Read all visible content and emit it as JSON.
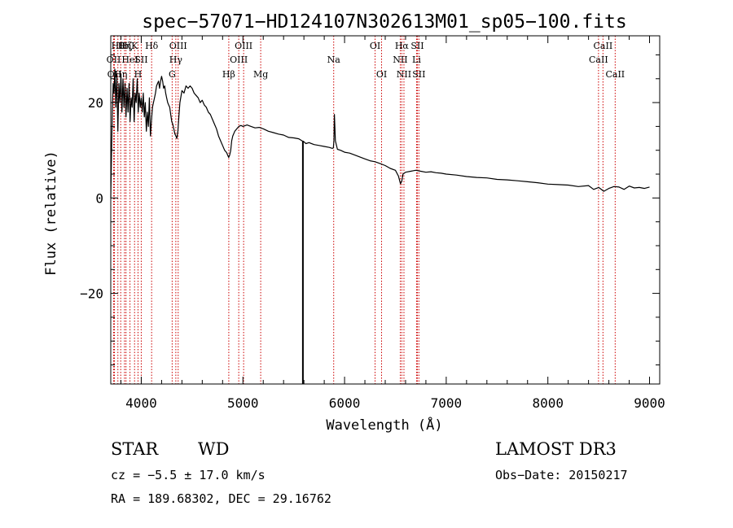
{
  "chart_data": {
    "type": "line",
    "title": "spec−57071−HD124107N302613M01_sp05−100.fits",
    "xlabel": "Wavelength (Å)",
    "ylabel": "Flux (relative)",
    "xlim": [
      3700,
      9100
    ],
    "ylim": [
      -39,
      34
    ],
    "x_ticks": [
      4000,
      5000,
      6000,
      7000,
      8000,
      9000
    ],
    "x_tick_labels": [
      "4000",
      "5000",
      "6000",
      "7000",
      "8000",
      "9000"
    ],
    "y_ticks": [
      -20,
      0,
      20
    ],
    "y_tick_labels": [
      "−20",
      "0",
      "20"
    ],
    "series": [
      {
        "name": "spectrum",
        "x": [
          3700,
          3708,
          3716,
          3724,
          3732,
          3740,
          3750,
          3760,
          3770,
          3780,
          3790,
          3800,
          3810,
          3820,
          3830,
          3840,
          3850,
          3860,
          3870,
          3880,
          3890,
          3900,
          3910,
          3920,
          3930,
          3940,
          3950,
          3960,
          3970,
          3980,
          3990,
          4000,
          4010,
          4020,
          4030,
          4040,
          4050,
          4060,
          4070,
          4080,
          4090,
          4100,
          4110,
          4120,
          4130,
          4140,
          4150,
          4160,
          4170,
          4180,
          4190,
          4200,
          4210,
          4220,
          4230,
          4240,
          4250,
          4260,
          4270,
          4280,
          4290,
          4300,
          4310,
          4320,
          4330,
          4340,
          4350,
          4360,
          4370,
          4380,
          4400,
          4420,
          4440,
          4460,
          4480,
          4500,
          4520,
          4540,
          4560,
          4580,
          4600,
          4620,
          4640,
          4660,
          4680,
          4700,
          4720,
          4740,
          4760,
          4780,
          4800,
          4820,
          4840,
          4850,
          4860,
          4870,
          4880,
          4890,
          4900,
          4920,
          4940,
          4960,
          4980,
          5000,
          5040,
          5080,
          5120,
          5160,
          5200,
          5250,
          5300,
          5350,
          5400,
          5450,
          5500,
          5550,
          5580,
          5600,
          5620,
          5650,
          5700,
          5750,
          5800,
          5850,
          5880,
          5890,
          5895,
          5900,
          5910,
          5930,
          5960,
          6000,
          6050,
          6100,
          6150,
          6200,
          6250,
          6300,
          6350,
          6400,
          6450,
          6500,
          6530,
          6550,
          6563,
          6575,
          6600,
          6650,
          6700,
          6750,
          6800,
          6850,
          6900,
          6950,
          7000,
          7100,
          7200,
          7300,
          7400,
          7500,
          7600,
          7700,
          7800,
          7900,
          8000,
          8100,
          8200,
          8300,
          8400,
          8450,
          8500,
          8550,
          8600,
          8650,
          8700,
          8750,
          8800,
          8850,
          8900,
          8950,
          9000
        ],
        "y": [
          0.0,
          10.0,
          19.0,
          24.0,
          22.0,
          27.0,
          19.0,
          26.0,
          14.0,
          24.0,
          20.0,
          26.0,
          18.0,
          25.0,
          19.0,
          24.0,
          17.0,
          23.0,
          18.0,
          24.0,
          16.0,
          21.0,
          19.0,
          25.0,
          16.0,
          22.0,
          20.0,
          25.0,
          18.0,
          22.0,
          19.0,
          21.0,
          18.0,
          22.0,
          17.0,
          20.0,
          14.0,
          18.0,
          15.0,
          21.0,
          13.0,
          16.0,
          19.0,
          20.0,
          21.0,
          22.0,
          23.5,
          24.0,
          24.5,
          23.0,
          24.5,
          25.5,
          24.5,
          23.0,
          23.5,
          22.0,
          21.0,
          20.0,
          19.5,
          19.0,
          17.5,
          16.0,
          15.5,
          14.5,
          13.5,
          13.0,
          12.5,
          14.0,
          17.0,
          20.0,
          22.5,
          22.0,
          23.5,
          23.0,
          23.5,
          23.0,
          22.0,
          21.5,
          21.0,
          20.0,
          20.5,
          19.5,
          19.0,
          18.0,
          17.5,
          16.5,
          15.5,
          14.5,
          13.0,
          12.0,
          11.0,
          10.0,
          9.5,
          9.0,
          8.5,
          9.0,
          10.0,
          12.0,
          13.0,
          14.0,
          14.5,
          15.0,
          15.2,
          15.0,
          15.3,
          15.0,
          14.7,
          14.8,
          14.5,
          14.0,
          13.7,
          13.4,
          13.2,
          12.7,
          12.6,
          12.4,
          12.0,
          11.8,
          11.4,
          11.6,
          11.2,
          11.0,
          10.8,
          10.6,
          10.4,
          10.5,
          12.0,
          17.5,
          12.0,
          10.2,
          10.0,
          9.6,
          9.4,
          9.0,
          8.6,
          8.2,
          7.8,
          7.6,
          7.2,
          6.8,
          6.2,
          5.8,
          4.6,
          3.0,
          3.5,
          5.0,
          5.4,
          5.6,
          5.8,
          5.6,
          5.4,
          5.5,
          5.3,
          5.2,
          5.0,
          4.8,
          4.5,
          4.3,
          4.2,
          3.9,
          3.8,
          3.6,
          3.4,
          3.2,
          2.9,
          2.8,
          2.7,
          2.4,
          2.6,
          1.8,
          2.2,
          1.4,
          2.0,
          2.4,
          2.3,
          1.8,
          2.5,
          2.1,
          2.2,
          2.0,
          2.3
        ]
      }
    ],
    "spike": {
      "x": 5590,
      "y_top": 12.0,
      "y_bottom": -39
    },
    "line_markers": [
      {
        "x": 3728,
        "label": "OII",
        "row": 2
      },
      {
        "x": 3736,
        "label": "OII",
        "row": 3
      },
      {
        "x": 3770,
        "label": "Hθ",
        "row": 1
      },
      {
        "x": 3798,
        "label": "Hη",
        "row": 3
      },
      {
        "x": 3835,
        "label": "Hη",
        "row": 1
      },
      {
        "x": 3850,
        "label": "Hζ",
        "row": 1
      },
      {
        "x": 3889,
        "label": "HeI",
        "row": 2
      },
      {
        "x": 3934,
        "label": "K",
        "row": 1
      },
      {
        "x": 3968,
        "label": "H",
        "row": 3
      },
      {
        "x": 4000,
        "label": "SII",
        "row": 2
      },
      {
        "x": 4102,
        "label": "Hδ",
        "row": 1
      },
      {
        "x": 4304,
        "label": "G",
        "row": 3
      },
      {
        "x": 4340,
        "label": "Hγ",
        "row": 2
      },
      {
        "x": 4363,
        "label": "OIII",
        "row": 1
      },
      {
        "x": 4861,
        "label": "Hβ",
        "row": 3
      },
      {
        "x": 4959,
        "label": "OIII",
        "row": 2
      },
      {
        "x": 5007,
        "label": "OIII",
        "row": 1
      },
      {
        "x": 5175,
        "label": "Mg",
        "row": 3
      },
      {
        "x": 5893,
        "label": "Na",
        "row": 2
      },
      {
        "x": 6300,
        "label": "OI",
        "row": 1
      },
      {
        "x": 6364,
        "label": "OI",
        "row": 3
      },
      {
        "x": 6548,
        "label": "NII",
        "row": 2
      },
      {
        "x": 6563,
        "label": "Hα",
        "row": 1
      },
      {
        "x": 6584,
        "label": "NII",
        "row": 3
      },
      {
        "x": 6708,
        "label": "Li",
        "row": 2
      },
      {
        "x": 6716,
        "label": "SII",
        "row": 1
      },
      {
        "x": 6731,
        "label": "SII",
        "row": 3
      },
      {
        "x": 8498,
        "label": "CaII",
        "row": 2
      },
      {
        "x": 8542,
        "label": "CaII",
        "row": 1
      },
      {
        "x": 8662,
        "label": "CaII",
        "row": 3
      }
    ],
    "colors": {
      "spectrum": "#000000",
      "line_marker": "#cc0000",
      "axes": "#000000"
    }
  },
  "info": {
    "object_class": "STAR",
    "subclass": "WD",
    "survey": "LAMOST DR3",
    "redshift": "cz = −5.5 ± 17.0 km/s",
    "obs_date": "Obs−Date: 20150217",
    "coords": "RA = 189.68302, DEC =  29.16762"
  }
}
